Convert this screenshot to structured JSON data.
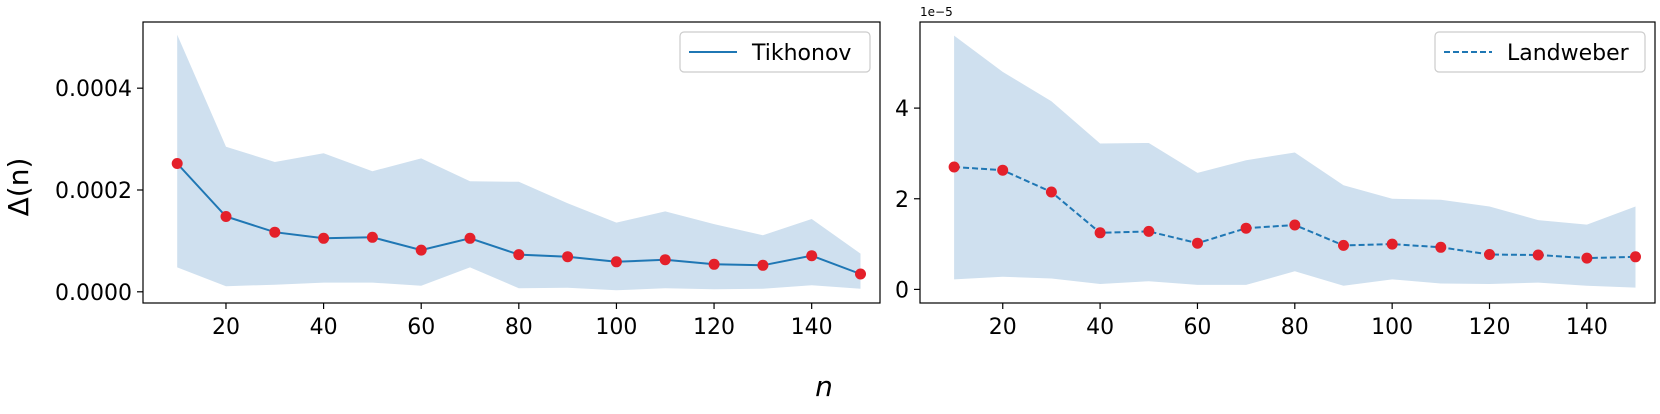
{
  "figure": {
    "shared_xlabel": "n",
    "shared_ylabel": "Δ(n)",
    "colors": {
      "line": "#1f77b4",
      "band": "#cfe0ef",
      "marker": "#e4202a",
      "axes": "#000000",
      "legend_border": "#cccccc"
    }
  },
  "chart_data": [
    {
      "type": "line",
      "title": "",
      "series_name": "Tikhonov",
      "line_style": "solid",
      "legend_position": "top-right",
      "x": [
        10,
        20,
        30,
        40,
        50,
        60,
        70,
        80,
        90,
        100,
        110,
        120,
        130,
        140,
        150
      ],
      "y": [
        0.000252,
        0.000148,
        0.000117,
        0.000105,
        0.000107,
        8.2e-05,
        0.000105,
        7.3e-05,
        6.9e-05,
        5.9e-05,
        6.3e-05,
        5.4e-05,
        5.2e-05,
        7.1e-05,
        3.5e-05
      ],
      "band_upper": [
        0.000505,
        0.000285,
        0.000255,
        0.000272,
        0.000237,
        0.000262,
        0.000217,
        0.000216,
        0.000174,
        0.000136,
        0.000158,
        0.000133,
        0.000111,
        0.000143,
        7.5e-05
      ],
      "band_lower": [
        4.8e-05,
        1.1e-05,
        1.4e-05,
        1.8e-05,
        1.8e-05,
        1.2e-05,
        4.8e-05,
        7e-06,
        8e-06,
        3e-06,
        7e-06,
        5e-06,
        6e-06,
        1.3e-05,
        6e-06
      ],
      "xlim": [
        3,
        154
      ],
      "ylim": [
        -2.2e-05,
        0.00053
      ],
      "xticks": [
        20,
        40,
        60,
        80,
        100,
        120,
        140
      ],
      "xtick_labels": [
        "20",
        "40",
        "60",
        "80",
        "100",
        "120",
        "140"
      ],
      "yticks": [
        0,
        0.0002,
        0.0004
      ],
      "ytick_labels": [
        "0.0000",
        "0.0002",
        "0.0004"
      ],
      "offset_text": "",
      "xlabel": "",
      "ylabel": "Δ(n)"
    },
    {
      "type": "line",
      "title": "",
      "series_name": "Landweber",
      "line_style": "dashed",
      "legend_position": "top-right",
      "x": [
        10,
        20,
        30,
        40,
        50,
        60,
        70,
        80,
        90,
        100,
        110,
        120,
        130,
        140,
        150
      ],
      "y": [
        2.7,
        2.63,
        2.15,
        1.25,
        1.28,
        1.02,
        1.35,
        1.42,
        0.97,
        1.0,
        0.93,
        0.77,
        0.76,
        0.69,
        0.72
      ],
      "band_upper": [
        5.6,
        4.8,
        4.15,
        3.22,
        3.23,
        2.57,
        2.85,
        3.02,
        2.3,
        2.0,
        1.98,
        1.83,
        1.53,
        1.43,
        1.83
      ],
      "band_lower": [
        0.22,
        0.28,
        0.24,
        0.12,
        0.18,
        0.1,
        0.1,
        0.4,
        0.08,
        0.22,
        0.13,
        0.12,
        0.15,
        0.08,
        0.04
      ],
      "xlim": [
        3,
        154
      ],
      "ylim": [
        -0.3,
        5.9
      ],
      "xticks": [
        20,
        40,
        60,
        80,
        100,
        120,
        140
      ],
      "xtick_labels": [
        "20",
        "40",
        "60",
        "80",
        "100",
        "120",
        "140"
      ],
      "yticks": [
        0,
        2,
        4
      ],
      "ytick_labels": [
        "0",
        "2",
        "4"
      ],
      "offset_text": "1e−5",
      "xlabel": "",
      "ylabel": ""
    }
  ]
}
